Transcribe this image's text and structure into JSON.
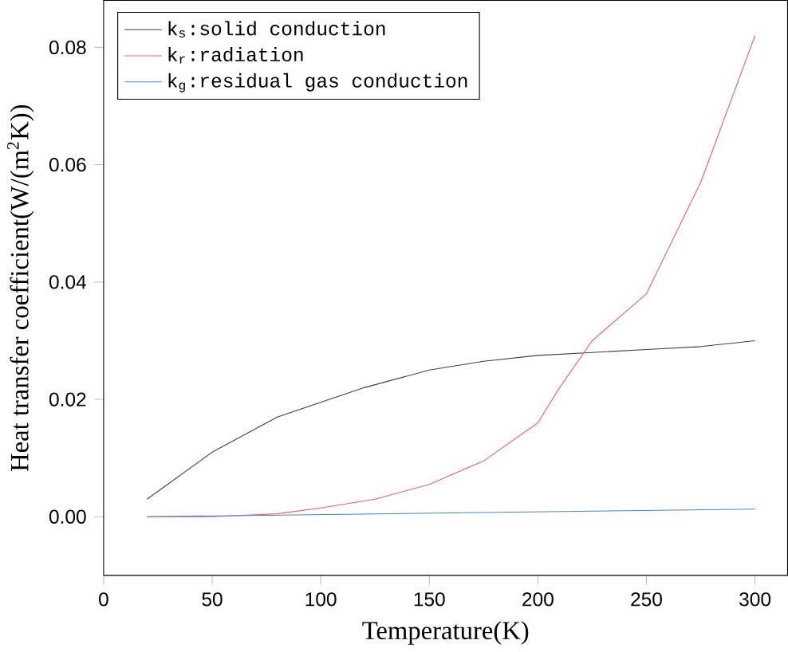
{
  "chart_data": {
    "type": "line",
    "xlabel": "Temperature(K)",
    "ylabel": "Heat transfer coefficient(W/(m$^{2}$K))",
    "xlim": [
      0,
      315
    ],
    "ylim": [
      -0.01,
      0.088
    ],
    "xticks": [
      0,
      50,
      100,
      150,
      200,
      250,
      300
    ],
    "yticks": [
      {
        "value": 0,
        "label": "0.00"
      },
      {
        "value": 0.02,
        "label": "0.02"
      },
      {
        "value": 0.04,
        "label": "0.04"
      },
      {
        "value": 0.06,
        "label": "0.06"
      },
      {
        "value": 0.08,
        "label": "0.08"
      }
    ],
    "legend": "top left",
    "grid": false,
    "series": [
      {
        "name": "k$_{s}$:solid conduction",
        "color": "#404040",
        "x": [
          20,
          50,
          80,
          100,
          120,
          150,
          175,
          200,
          225,
          250,
          275,
          300
        ],
        "values": [
          0.003,
          0.011,
          0.017,
          0.0195,
          0.022,
          0.025,
          0.0265,
          0.0275,
          0.028,
          0.0285,
          0.029,
          0.03
        ]
      },
      {
        "name": "k$_{r}$:radiation",
        "color": "#f06060",
        "x": [
          20,
          50,
          80,
          100,
          125,
          150,
          175,
          200,
          210,
          225,
          250,
          275,
          300
        ],
        "values": [
          0,
          0,
          0.0005,
          0.0015,
          0.003,
          0.0055,
          0.0095,
          0.016,
          0.022,
          0.03,
          0.038,
          0.057,
          0.082
        ]
      },
      {
        "name": "k$_{g}$:residual gas conduction",
        "color": "#4a80e0",
        "x": [
          20,
          300
        ],
        "values": [
          0,
          0.0013
        ]
      }
    ]
  }
}
